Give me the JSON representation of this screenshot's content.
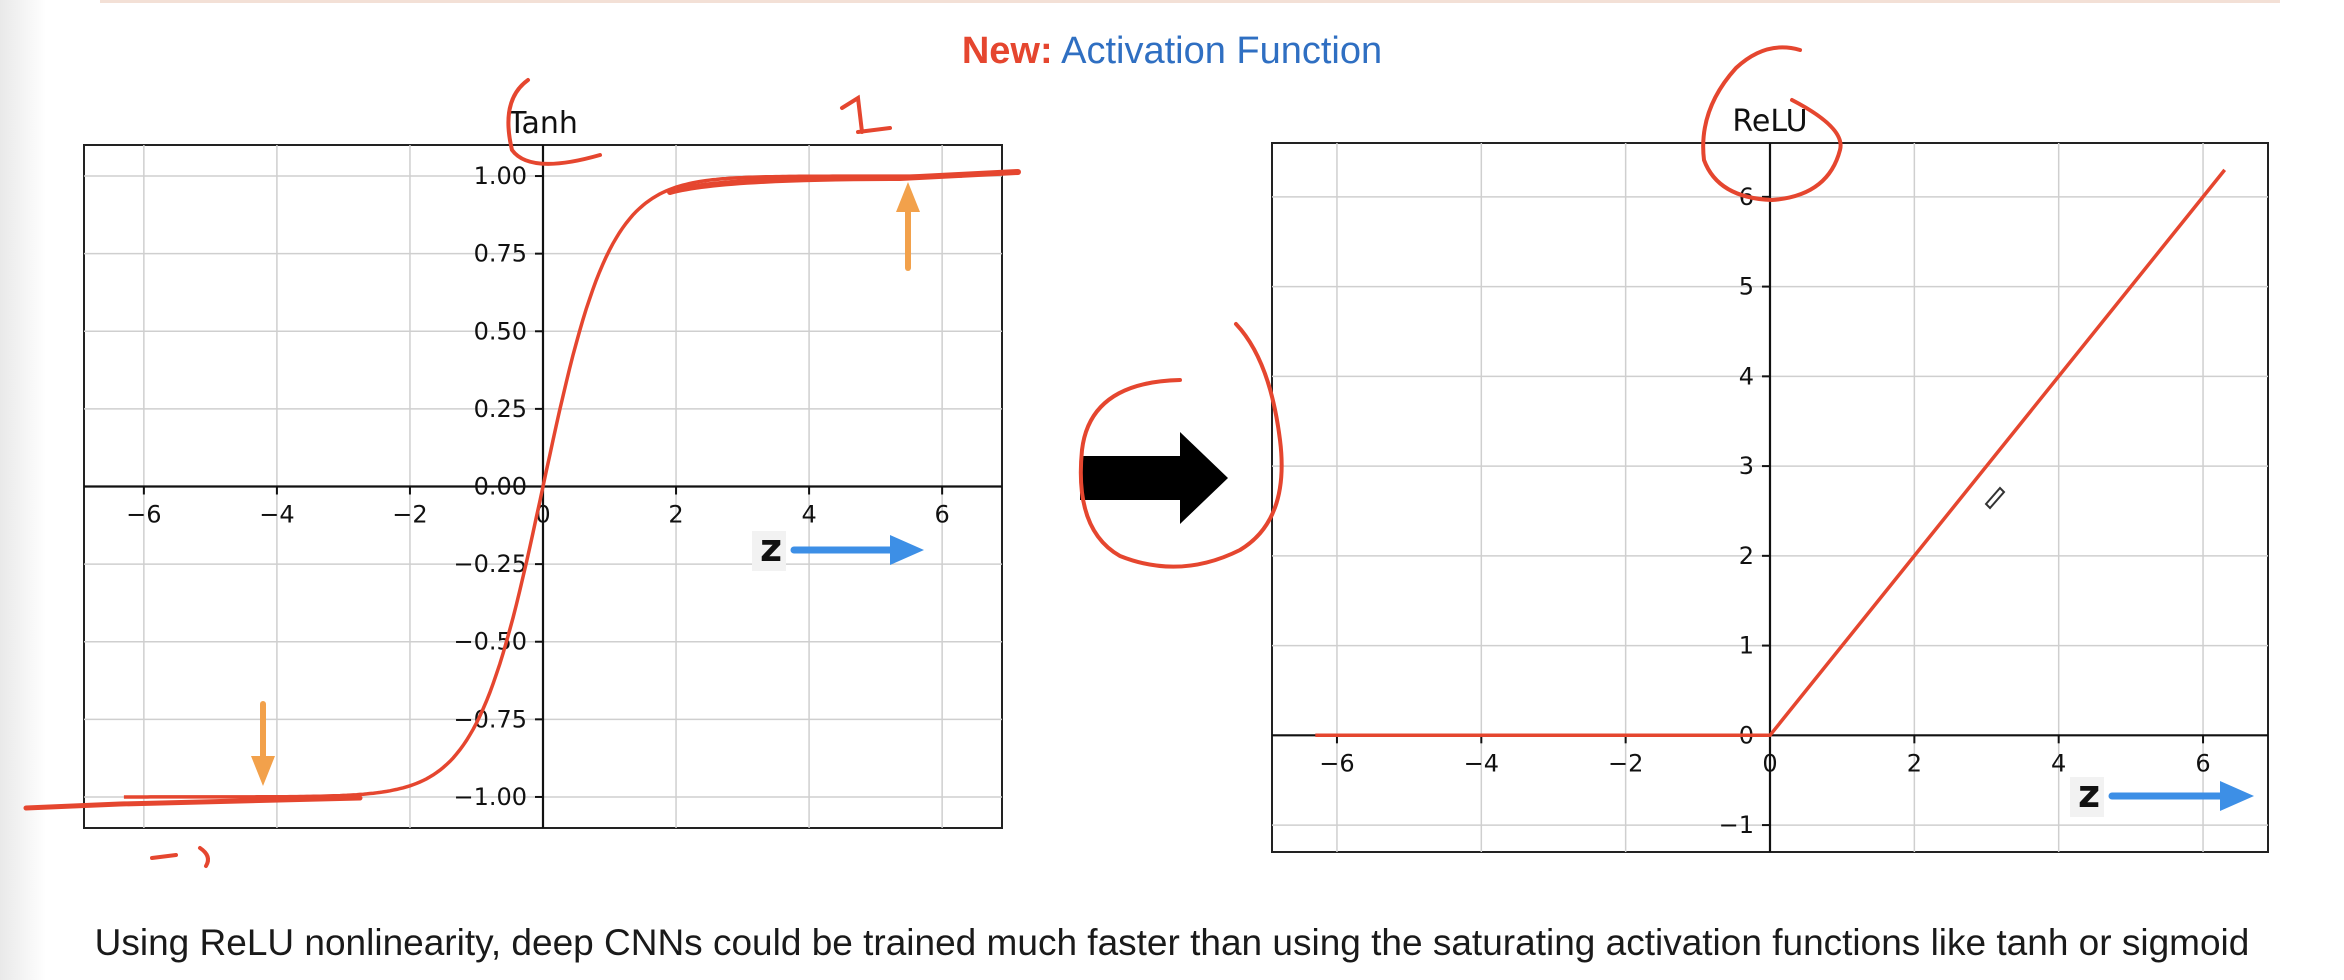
{
  "slide": {
    "title_prefix": "New:",
    "title_main": "Activation Function",
    "caption": "Using ReLU nonlinearity, deep CNNs could be trained much faster than using the saturating activation functions like tanh or sigmoid"
  },
  "colors": {
    "curve": "#e5462f",
    "title_prefix": "#e5462f",
    "title_main": "#2f6fc2",
    "annotation_arrow_up_down": "#f2a14b",
    "annotation_arrow_z": "#3d8fe6",
    "grid": "#cfcfcf"
  },
  "chart_data": [
    {
      "type": "line",
      "title": "Tanh",
      "function": "tanh",
      "xlim": [
        -6.9,
        6.9
      ],
      "ylim": [
        -1.1,
        1.1
      ],
      "x_ticks": [
        -6,
        -4,
        -2,
        0,
        2,
        4,
        6
      ],
      "x_tick_labels": [
        "−6",
        "−4",
        "−2",
        "0",
        "2",
        "4",
        "6"
      ],
      "y_ticks": [
        -1.0,
        -0.75,
        -0.5,
        -0.25,
        0.0,
        0.25,
        0.5,
        0.75,
        1.0
      ],
      "y_tick_labels": [
        "−1.00",
        "−0.75",
        "−0.50",
        "−0.25",
        "0.00",
        "0.25",
        "0.50",
        "0.75",
        "1.00"
      ],
      "x": [
        -6,
        -5,
        -4,
        -3,
        -2,
        -1.5,
        -1,
        -0.5,
        0,
        0.5,
        1,
        1.5,
        2,
        3,
        4,
        5,
        6
      ],
      "y": [
        -1.0,
        -0.9999,
        -0.9993,
        -0.9951,
        -0.964,
        -0.9051,
        -0.7616,
        -0.4621,
        0.0,
        0.4621,
        0.7616,
        0.9051,
        0.964,
        0.9951,
        0.9993,
        0.9999,
        1.0
      ],
      "grid": true,
      "annotations": {
        "axis_label": "z",
        "handwritten_top": "1",
        "handwritten_bottom": "-1"
      }
    },
    {
      "type": "line",
      "title": "ReLU",
      "function": "relu",
      "xlim": [
        -6.9,
        6.9
      ],
      "ylim": [
        -1.3,
        6.6
      ],
      "x_ticks": [
        -6,
        -4,
        -2,
        0,
        2,
        4,
        6
      ],
      "x_tick_labels": [
        "−6",
        "−4",
        "−2",
        "0",
        "2",
        "4",
        "6"
      ],
      "y_ticks": [
        -1,
        0,
        1,
        2,
        3,
        4,
        5,
        6
      ],
      "y_tick_labels": [
        "−1",
        "0",
        "1",
        "2",
        "3",
        "4",
        "5",
        "6"
      ],
      "x": [
        -6.3,
        0,
        6.3
      ],
      "y": [
        0,
        0,
        6.3
      ],
      "grid": true,
      "annotations": {
        "axis_label": "z"
      }
    }
  ]
}
